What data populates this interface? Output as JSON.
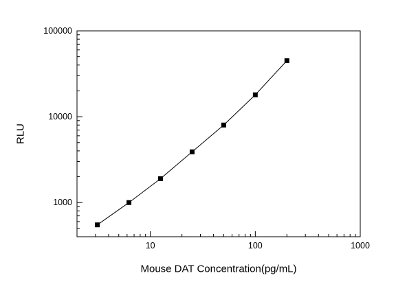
{
  "chart_data": {
    "type": "line",
    "title": "",
    "xlabel": "Mouse DAT Concentration(pg/mL)",
    "ylabel": "RLU",
    "xscale": "log",
    "yscale": "log",
    "xlim": [
      2,
      1000
    ],
    "ylim": [
      400,
      100000
    ],
    "x": [
      3.125,
      6.25,
      12.5,
      25,
      50,
      100,
      200
    ],
    "y": [
      550,
      1000,
      1900,
      3900,
      8000,
      18000,
      45000
    ],
    "x_major_ticks": [
      10,
      100,
      1000
    ],
    "y_major_ticks": [
      1000,
      10000,
      100000
    ],
    "x_minor_ticks": [
      2,
      3,
      4,
      5,
      6,
      7,
      8,
      9,
      20,
      30,
      40,
      50,
      60,
      70,
      80,
      90,
      200,
      300,
      400,
      500,
      600,
      700,
      800,
      900
    ],
    "y_minor_ticks": [
      500,
      600,
      700,
      800,
      900,
      2000,
      3000,
      4000,
      5000,
      6000,
      7000,
      8000,
      9000,
      20000,
      30000,
      40000,
      50000,
      60000,
      70000,
      80000,
      90000
    ],
    "marker": "square",
    "marker_color": "#000000",
    "line_color": "#000000",
    "frame_color": "#000000",
    "background": "#ffffff",
    "legend": "none",
    "grid": "off"
  }
}
